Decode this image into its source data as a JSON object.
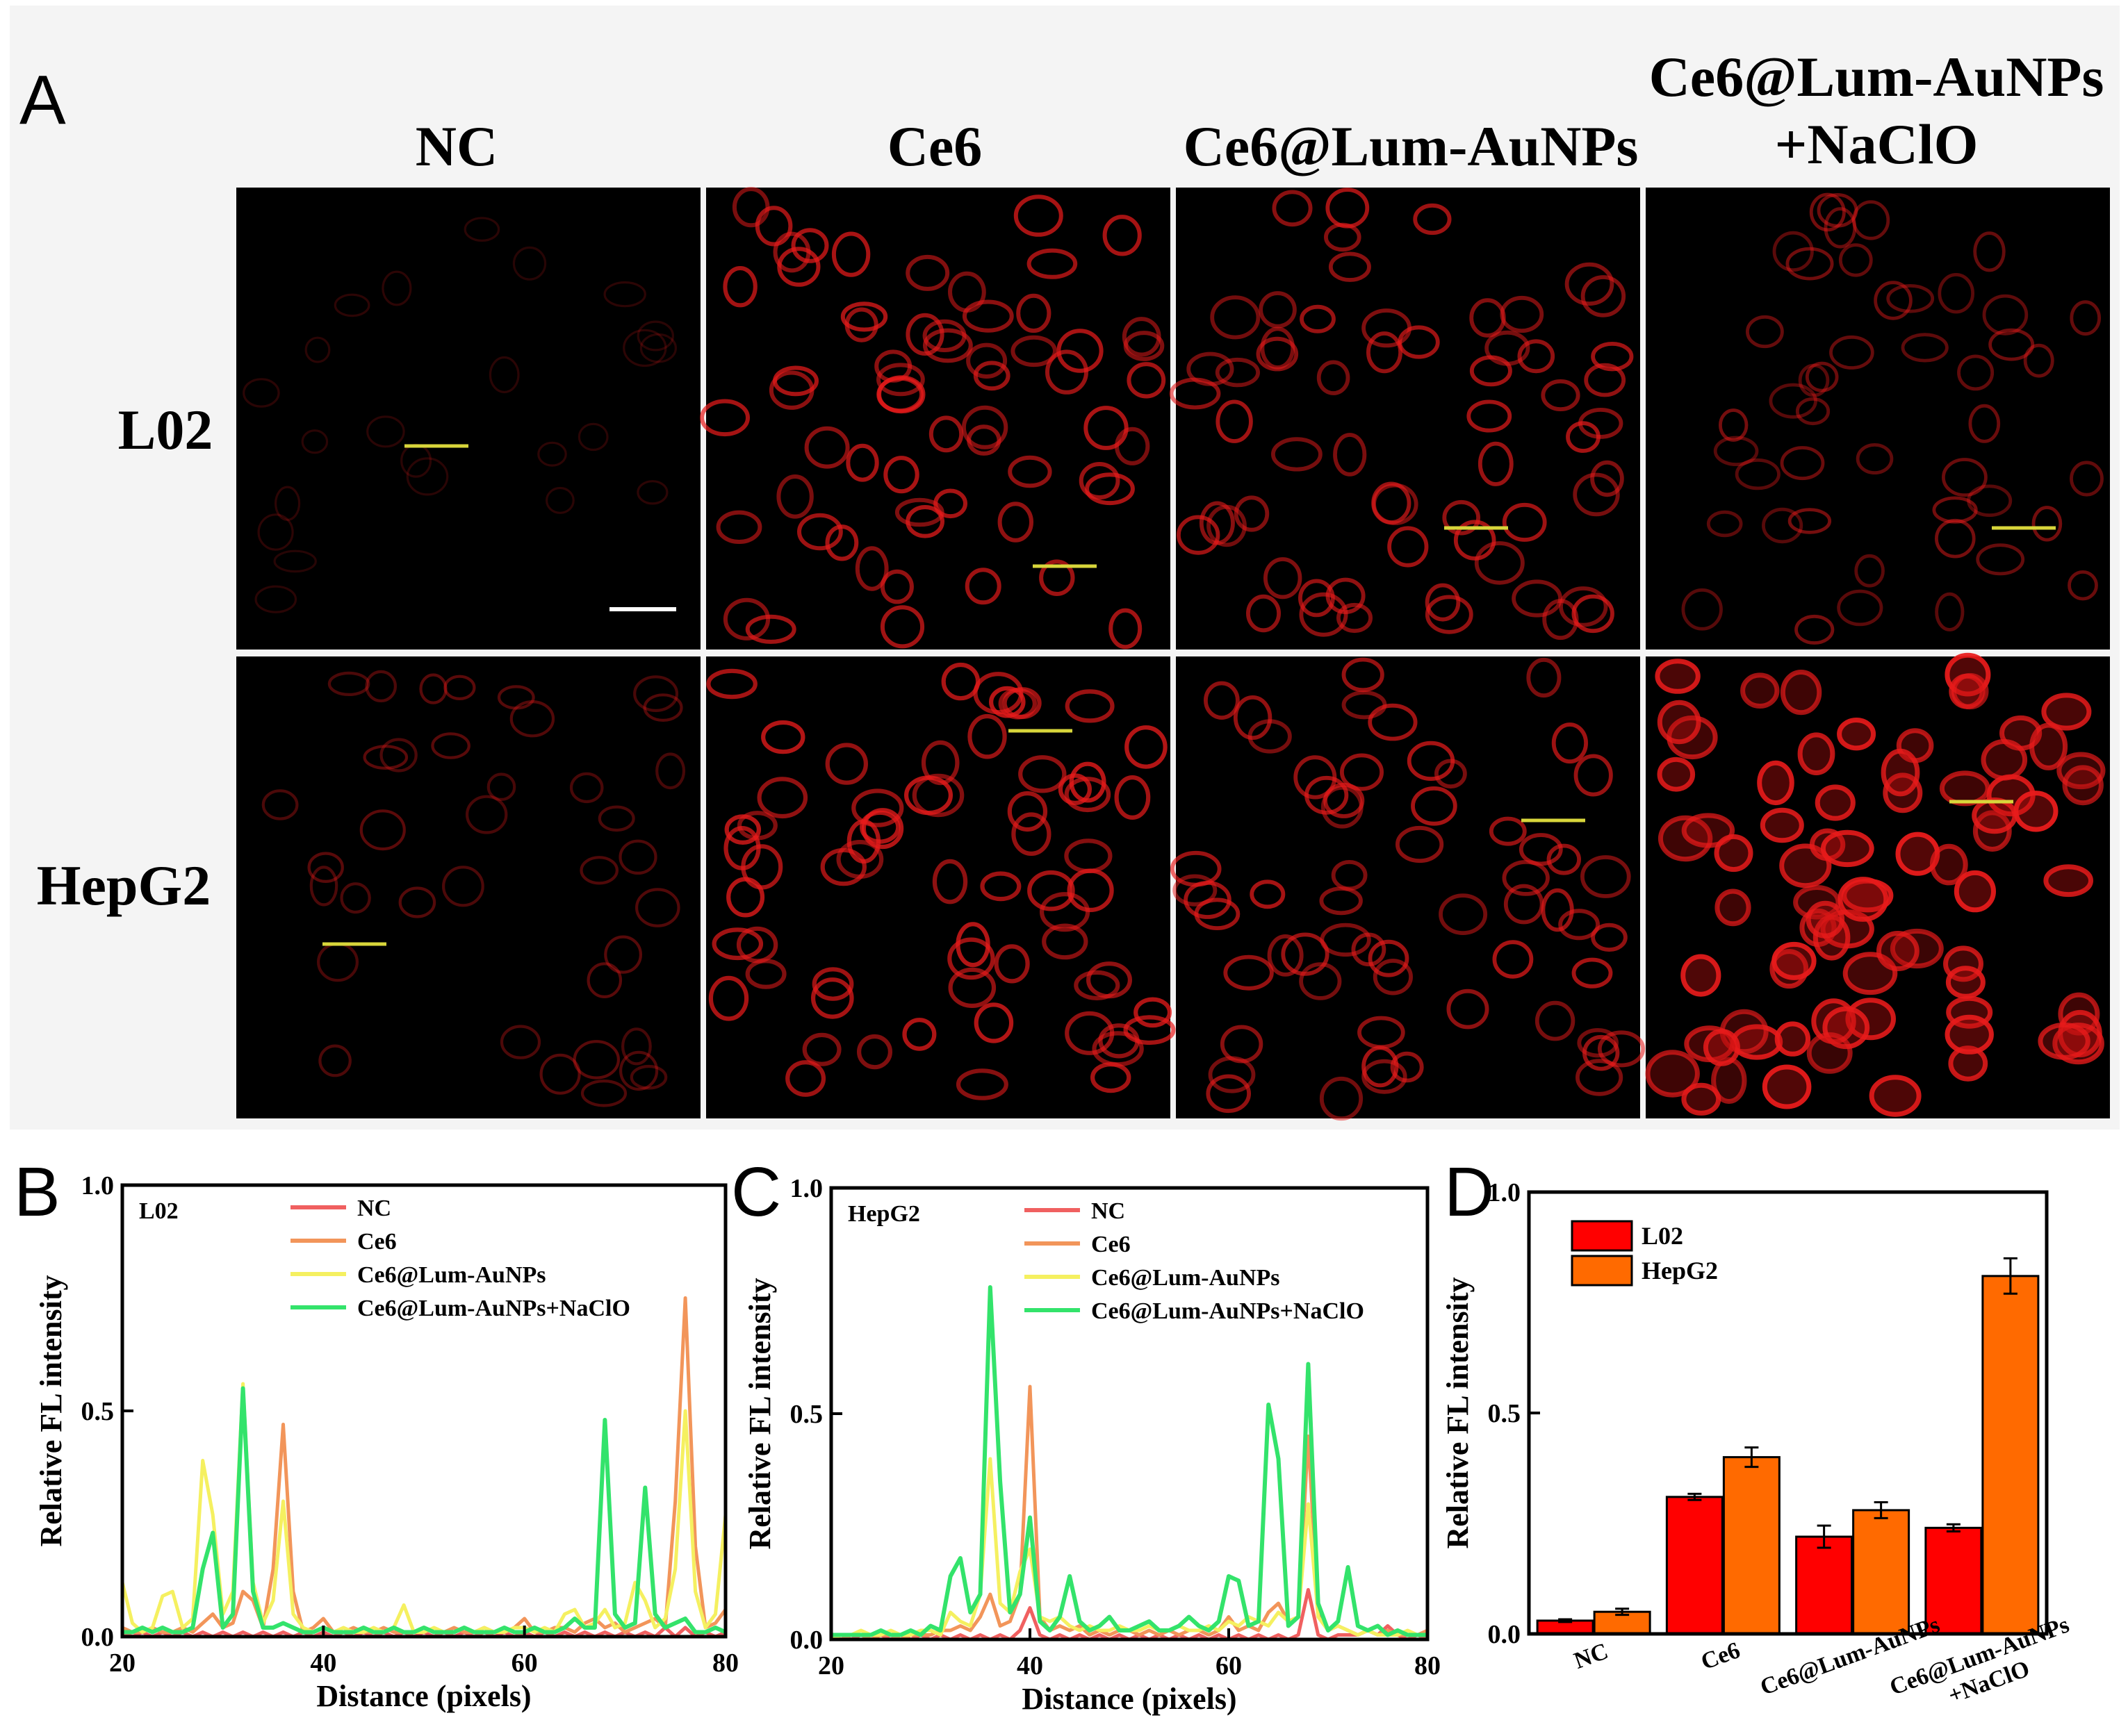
{
  "panel_a": {
    "letter": "A",
    "column_labels": [
      "NC",
      "Ce6",
      "Ce6@Lum-AuNPs",
      "Ce6@Lum-AuNPs",
      "+NaClO"
    ],
    "row_labels": [
      "L02",
      "HepG2"
    ],
    "cell_brightness": [
      [
        0.05,
        0.75,
        0.7,
        0.45
      ],
      [
        0.3,
        0.8,
        0.7,
        1.0
      ]
    ]
  },
  "colors": {
    "NC": "#f06060",
    "Ce6": "#f2955a",
    "Ce6@Lum-AuNPs": "#f5f060",
    "Ce6@Lum-AuNPs+NaClO": "#33e36b",
    "L02": "#ff0000",
    "HepG2": "#ff6a00",
    "line_marker": "#d8d63b"
  },
  "chart_data": [
    {
      "panel": "B",
      "type": "line",
      "inset_label": "L02",
      "xlabel": "Distance (pixels)",
      "ylabel": "Relative FL intensity",
      "xlim": [
        20,
        80
      ],
      "ylim": [
        0,
        1.0
      ],
      "xticks": [
        "20",
        "40",
        "60",
        "80"
      ],
      "yticks": [
        "0.0",
        "0.5",
        "1.0"
      ],
      "x": [
        20,
        21,
        22,
        23,
        24,
        25,
        26,
        27,
        28,
        29,
        30,
        31,
        32,
        33,
        34,
        35,
        36,
        37,
        38,
        39,
        40,
        41,
        42,
        43,
        44,
        45,
        46,
        47,
        48,
        49,
        50,
        51,
        52,
        53,
        54,
        55,
        56,
        57,
        58,
        59,
        60,
        61,
        62,
        63,
        64,
        65,
        66,
        67,
        68,
        69,
        70,
        71,
        72,
        73,
        74,
        75,
        76,
        77,
        78,
        79,
        80
      ],
      "series": [
        {
          "name": "NC",
          "values": [
            0.01,
            0,
            0.01,
            0,
            0.01,
            0,
            0.01,
            0,
            0.01,
            0,
            0.01,
            0,
            0.01,
            0,
            0.01,
            0,
            0.01,
            0,
            0.01,
            0,
            0.01,
            0,
            0.01,
            0,
            0.01,
            0,
            0.01,
            0,
            0.01,
            0,
            0.01,
            0,
            0.01,
            0,
            0.01,
            0,
            0.01,
            0,
            0.01,
            0,
            0.01,
            0,
            0.01,
            0,
            0.01,
            0,
            0.01,
            0,
            0.01,
            0,
            0.01,
            0,
            0.01,
            0,
            0.02,
            0,
            0.02,
            0,
            0.01,
            0,
            0.01
          ]
        },
        {
          "name": "Ce6",
          "values": [
            0.02,
            0.01,
            0.01,
            0.02,
            0.01,
            0.01,
            0.02,
            0.01,
            0.03,
            0.05,
            0.02,
            0.03,
            0.1,
            0.08,
            0.02,
            0.15,
            0.47,
            0.1,
            0.01,
            0.02,
            0.04,
            0.01,
            0.01,
            0.02,
            0.01,
            0.01,
            0.02,
            0.01,
            0.01,
            0.01,
            0.02,
            0.01,
            0.01,
            0.02,
            0.01,
            0.01,
            0.02,
            0.01,
            0.01,
            0.02,
            0.04,
            0.01,
            0.01,
            0.02,
            0.02,
            0.01,
            0.03,
            0.04,
            0.02,
            0.03,
            0.01,
            0.02,
            0.03,
            0.04,
            0.02,
            0.3,
            0.75,
            0.2,
            0.02,
            0.03,
            0.06
          ]
        },
        {
          "name": "Ce6@Lum-AuNPs",
          "values": [
            0.12,
            0.03,
            0.01,
            0.02,
            0.09,
            0.1,
            0.02,
            0.04,
            0.39,
            0.27,
            0.05,
            0.1,
            0.56,
            0.12,
            0.03,
            0.08,
            0.3,
            0.05,
            0.02,
            0.01,
            0.02,
            0.01,
            0.02,
            0.01,
            0.01,
            0.02,
            0.01,
            0.02,
            0.07,
            0.01,
            0.01,
            0.02,
            0.01,
            0.01,
            0.02,
            0.01,
            0.02,
            0.01,
            0.01,
            0.02,
            0.02,
            0.01,
            0.02,
            0.01,
            0.05,
            0.06,
            0.02,
            0.03,
            0.06,
            0.02,
            0.03,
            0.12,
            0.08,
            0.02,
            0.04,
            0.15,
            0.5,
            0.1,
            0.02,
            0.05,
            0.27
          ]
        },
        {
          "name": "Ce6@Lum-AuNPs+NaClO",
          "values": [
            0.01,
            0.01,
            0.02,
            0.01,
            0.02,
            0.01,
            0.01,
            0.02,
            0.15,
            0.23,
            0.02,
            0.05,
            0.55,
            0.1,
            0.02,
            0.02,
            0.03,
            0.02,
            0.01,
            0.01,
            0.02,
            0.01,
            0.01,
            0.01,
            0.02,
            0.01,
            0.01,
            0.02,
            0.01,
            0.01,
            0.02,
            0.01,
            0.01,
            0.01,
            0.02,
            0.01,
            0.01,
            0.01,
            0.02,
            0.01,
            0.01,
            0.02,
            0.01,
            0.01,
            0.02,
            0.04,
            0.02,
            0.02,
            0.48,
            0.05,
            0.02,
            0.03,
            0.33,
            0.05,
            0.02,
            0.03,
            0.04,
            0.01,
            0.01,
            0.02,
            0.01
          ]
        }
      ]
    },
    {
      "panel": "C",
      "type": "line",
      "inset_label": "HepG2",
      "xlabel": "Distance (pixels)",
      "ylabel": "Relative FL intensity",
      "xlim": [
        20,
        80
      ],
      "ylim": [
        0,
        1.0
      ],
      "xticks": [
        "20",
        "40",
        "60",
        "80"
      ],
      "yticks": [
        "0.0",
        "0.5",
        "1.0"
      ],
      "x": [
        20,
        21,
        22,
        23,
        24,
        25,
        26,
        27,
        28,
        29,
        30,
        31,
        32,
        33,
        34,
        35,
        36,
        37,
        38,
        39,
        40,
        41,
        42,
        43,
        44,
        45,
        46,
        47,
        48,
        49,
        50,
        51,
        52,
        53,
        54,
        55,
        56,
        57,
        58,
        59,
        60,
        61,
        62,
        63,
        64,
        65,
        66,
        67,
        68,
        69,
        70,
        71,
        72,
        73,
        74,
        75,
        76,
        77,
        78,
        79,
        80
      ],
      "series": [
        {
          "name": "NC",
          "values": [
            0,
            0.01,
            0,
            0.01,
            0,
            0.01,
            0,
            0.01,
            0,
            0.01,
            0,
            0.01,
            0,
            0.01,
            0,
            0.01,
            0,
            0.01,
            0,
            0.02,
            0.07,
            0.01,
            0,
            0.01,
            0,
            0.01,
            0,
            0.01,
            0,
            0.01,
            0,
            0.01,
            0,
            0.01,
            0,
            0.01,
            0,
            0.01,
            0,
            0.01,
            0,
            0.01,
            0,
            0.01,
            0,
            0.01,
            0,
            0.01,
            0.11,
            0.01,
            0,
            0.01,
            0.01,
            0.01,
            0.02,
            0.01,
            0.03,
            0.01,
            0,
            0.01,
            0
          ]
        },
        {
          "name": "Ce6",
          "values": [
            0.01,
            0,
            0.01,
            0.01,
            0,
            0.01,
            0.01,
            0,
            0.01,
            0.01,
            0.01,
            0.02,
            0.02,
            0.03,
            0.02,
            0.05,
            0.1,
            0.03,
            0.04,
            0.1,
            0.56,
            0.05,
            0.02,
            0.03,
            0.02,
            0.03,
            0.01,
            0.02,
            0.01,
            0.02,
            0.02,
            0.01,
            0.02,
            0.01,
            0.02,
            0.01,
            0.02,
            0.02,
            0.01,
            0.02,
            0.05,
            0.02,
            0.03,
            0.02,
            0.06,
            0.08,
            0.04,
            0.05,
            0.45,
            0.06,
            0.02,
            0.03,
            0.02,
            0.01,
            0.02,
            0.01,
            0.02,
            0.01,
            0.01,
            0.01,
            0.02
          ]
        },
        {
          "name": "Ce6@Lum-AuNPs",
          "values": [
            0,
            0.01,
            0.01,
            0.02,
            0.01,
            0.01,
            0.02,
            0.01,
            0.01,
            0.02,
            0.02,
            0.01,
            0.06,
            0.04,
            0.03,
            0.1,
            0.4,
            0.08,
            0.06,
            0.15,
            0.2,
            0.05,
            0.04,
            0.05,
            0.03,
            0.02,
            0.03,
            0.02,
            0.02,
            0.03,
            0.02,
            0.02,
            0.03,
            0.02,
            0.02,
            0.03,
            0.02,
            0.02,
            0.03,
            0.02,
            0.04,
            0.03,
            0.05,
            0.04,
            0.03,
            0.06,
            0.04,
            0.05,
            0.3,
            0.05,
            0.02,
            0.03,
            0.02,
            0.01,
            0.02,
            0.01,
            0.01,
            0.01,
            0.02,
            0.01,
            0.01
          ]
        },
        {
          "name": "Ce6@Lum-AuNPs+NaClO",
          "values": [
            0.01,
            0.01,
            0.01,
            0.01,
            0.01,
            0.02,
            0.01,
            0.01,
            0.02,
            0.01,
            0.03,
            0.02,
            0.14,
            0.18,
            0.06,
            0.1,
            0.78,
            0.35,
            0.06,
            0.1,
            0.27,
            0.04,
            0.02,
            0.05,
            0.14,
            0.04,
            0.02,
            0.03,
            0.05,
            0.02,
            0.02,
            0.03,
            0.04,
            0.02,
            0.02,
            0.03,
            0.05,
            0.03,
            0.02,
            0.04,
            0.14,
            0.13,
            0.03,
            0.04,
            0.52,
            0.4,
            0.03,
            0.05,
            0.61,
            0.08,
            0.02,
            0.04,
            0.16,
            0.03,
            0.02,
            0.03,
            0.01,
            0.02,
            0.01,
            0.01,
            0.01
          ]
        }
      ]
    },
    {
      "panel": "D",
      "type": "bar",
      "ylabel": "Relative FL intensity",
      "ylim": [
        0,
        1.0
      ],
      "yticks": [
        "0.0",
        "0.5",
        "1.0"
      ],
      "categories": [
        "NC",
        "Ce6",
        "Ce6@Lum-AuNPs",
        "Ce6@Lum-AuNPs\n+NaClO"
      ],
      "category_labels": [
        [
          "NC"
        ],
        [
          "Ce6"
        ],
        [
          "Ce6@Lum-AuNPs"
        ],
        [
          "Ce6@Lum-AuNPs",
          "+NaClO"
        ]
      ],
      "series": [
        {
          "name": "L02",
          "values": [
            0.03,
            0.31,
            0.22,
            0.24
          ],
          "errors": [
            0.003,
            0.007,
            0.025,
            0.008
          ]
        },
        {
          "name": "HepG2",
          "values": [
            0.05,
            0.4,
            0.28,
            0.81
          ],
          "errors": [
            0.007,
            0.022,
            0.018,
            0.04
          ]
        }
      ]
    }
  ]
}
